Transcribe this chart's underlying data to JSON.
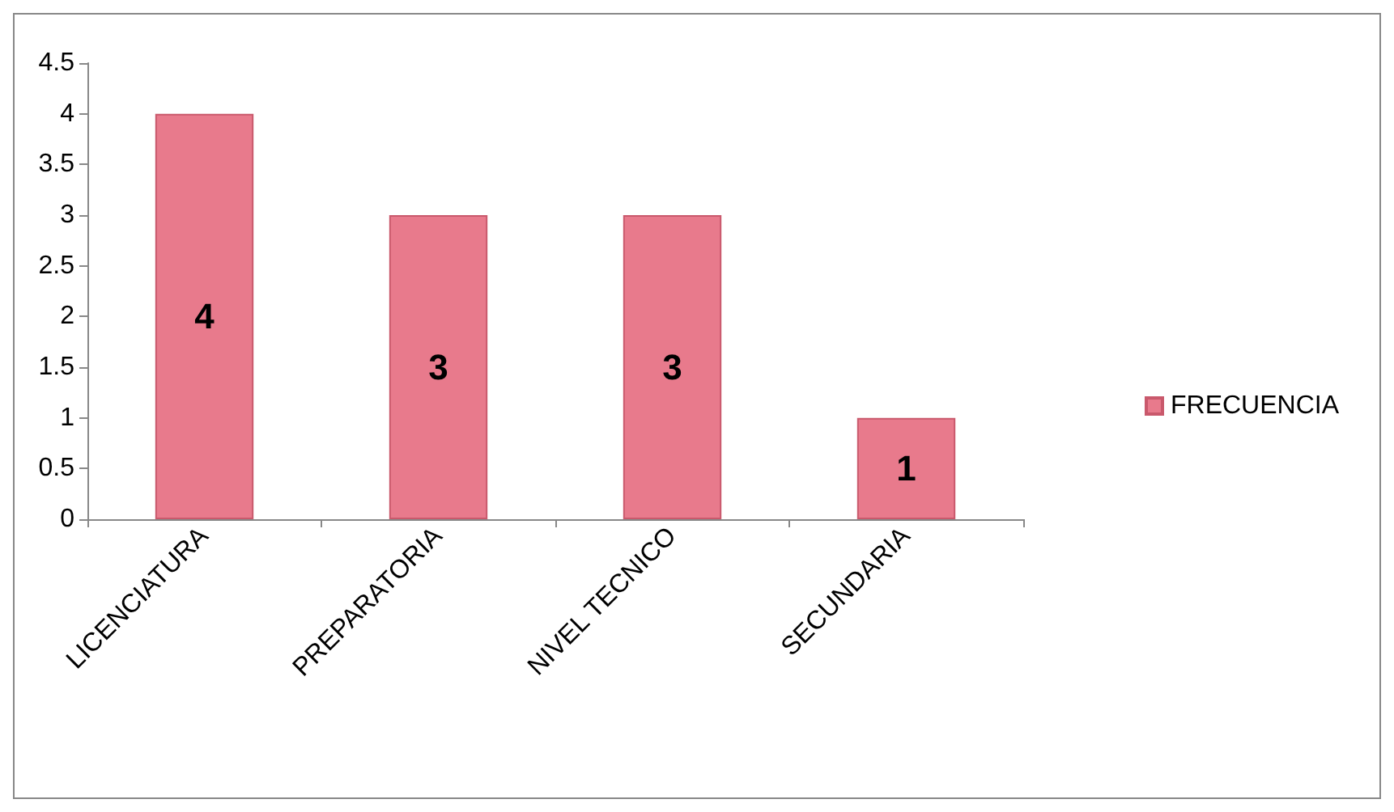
{
  "chart_data": {
    "type": "bar",
    "categories": [
      "LICENCIATURA",
      "PREPARATORIA",
      "NIVEL TECNICO",
      "SECUNDARIA"
    ],
    "series": [
      {
        "name": "FRECUENCIA",
        "color": "#e87a8c",
        "values": [
          4,
          3,
          3,
          1
        ]
      }
    ],
    "ylim": [
      0,
      4.5
    ],
    "yticks": [
      0,
      0.5,
      1,
      1.5,
      2,
      2.5,
      3,
      3.5,
      4,
      4.5
    ],
    "data_labels": true,
    "legend": "right"
  }
}
